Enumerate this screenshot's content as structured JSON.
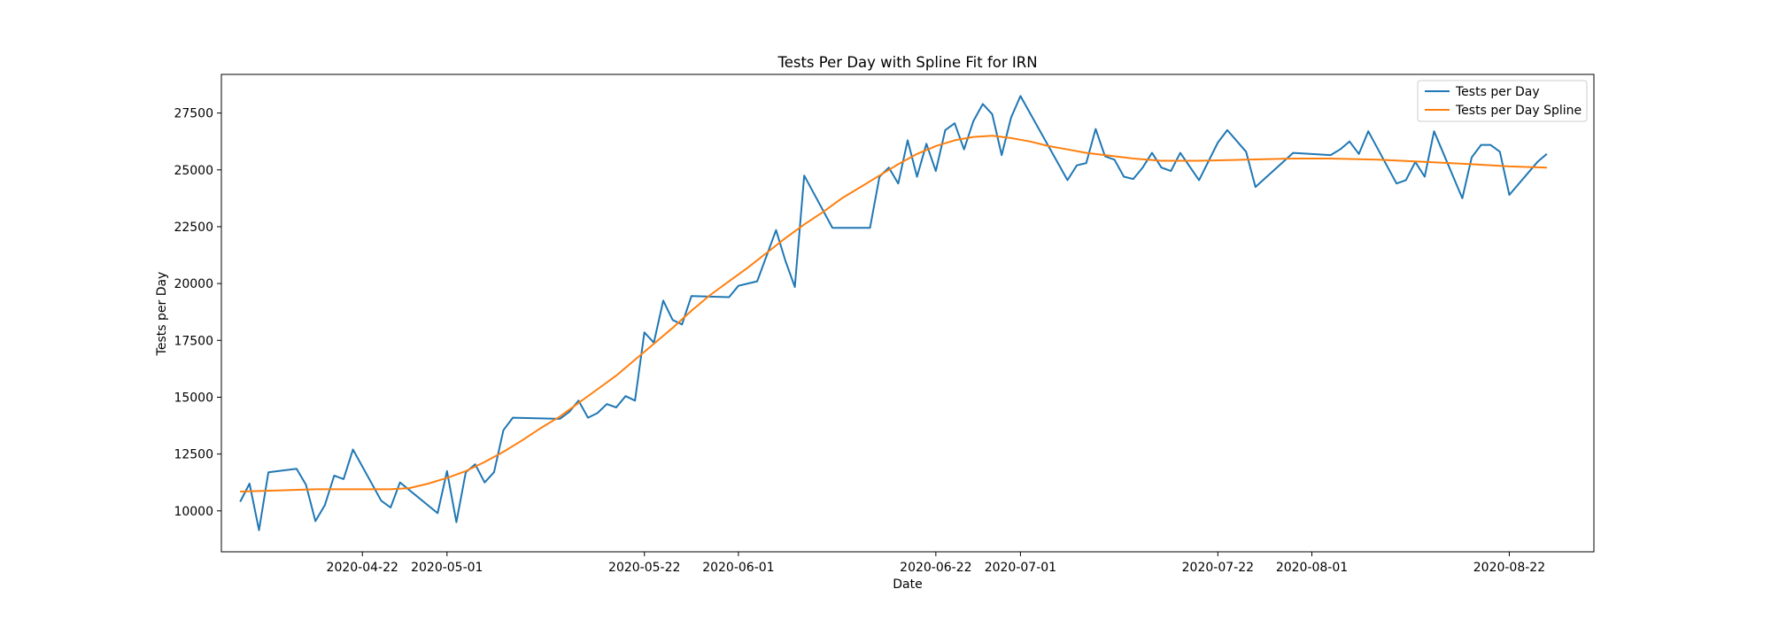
{
  "chart_data": {
    "type": "line",
    "title": "Tests Per Day with Spline Fit for IRN",
    "xlabel": "Date",
    "ylabel": "Tests per Day",
    "xlim": [
      "2020-04-07",
      "2020-08-31"
    ],
    "ylim": [
      8200,
      29200
    ],
    "x_ticks": [
      "2020-04-22",
      "2020-05-01",
      "2020-05-22",
      "2020-06-01",
      "2020-06-22",
      "2020-07-01",
      "2020-07-22",
      "2020-08-01",
      "2020-08-22"
    ],
    "y_ticks": [
      10000,
      12500,
      15000,
      17500,
      20000,
      22500,
      25000,
      27500
    ],
    "grid": false,
    "legend_position": "top-right",
    "series": [
      {
        "name": "Tests per Day",
        "color": "#1f77b4",
        "points": [
          [
            "2020-04-09",
            10400
          ],
          [
            "2020-04-10",
            11200
          ],
          [
            "2020-04-11",
            9150
          ],
          [
            "2020-04-12",
            11700
          ],
          [
            "2020-04-15",
            11850
          ],
          [
            "2020-04-16",
            11150
          ],
          [
            "2020-04-17",
            9550
          ],
          [
            "2020-04-18",
            10250
          ],
          [
            "2020-04-19",
            11550
          ],
          [
            "2020-04-20",
            11400
          ],
          [
            "2020-04-21",
            12700
          ],
          [
            "2020-04-24",
            10450
          ],
          [
            "2020-04-25",
            10150
          ],
          [
            "2020-04-26",
            11250
          ],
          [
            "2020-04-30",
            9900
          ],
          [
            "2020-05-01",
            11750
          ],
          [
            "2020-05-02",
            9500
          ],
          [
            "2020-05-03",
            11700
          ],
          [
            "2020-05-04",
            12050
          ],
          [
            "2020-05-05",
            11250
          ],
          [
            "2020-05-06",
            11700
          ],
          [
            "2020-05-07",
            13550
          ],
          [
            "2020-05-08",
            14100
          ],
          [
            "2020-05-13",
            14050
          ],
          [
            "2020-05-14",
            14350
          ],
          [
            "2020-05-15",
            14850
          ],
          [
            "2020-05-16",
            14100
          ],
          [
            "2020-05-17",
            14300
          ],
          [
            "2020-05-18",
            14700
          ],
          [
            "2020-05-19",
            14550
          ],
          [
            "2020-05-20",
            15050
          ],
          [
            "2020-05-21",
            14850
          ],
          [
            "2020-05-22",
            17850
          ],
          [
            "2020-05-23",
            17400
          ],
          [
            "2020-05-24",
            19250
          ],
          [
            "2020-05-25",
            18400
          ],
          [
            "2020-05-26",
            18200
          ],
          [
            "2020-05-27",
            19450
          ],
          [
            "2020-05-31",
            19400
          ],
          [
            "2020-06-01",
            19900
          ],
          [
            "2020-06-02",
            20000
          ],
          [
            "2020-06-03",
            20100
          ],
          [
            "2020-06-05",
            22350
          ],
          [
            "2020-06-06",
            21000
          ],
          [
            "2020-06-07",
            19850
          ],
          [
            "2020-06-08",
            24750
          ],
          [
            "2020-06-11",
            22450
          ],
          [
            "2020-06-15",
            22450
          ],
          [
            "2020-06-16",
            24700
          ],
          [
            "2020-06-17",
            25100
          ],
          [
            "2020-06-18",
            24400
          ],
          [
            "2020-06-19",
            26300
          ],
          [
            "2020-06-20",
            24700
          ],
          [
            "2020-06-21",
            26150
          ],
          [
            "2020-06-22",
            24950
          ],
          [
            "2020-06-23",
            26750
          ],
          [
            "2020-06-24",
            27050
          ],
          [
            "2020-06-25",
            25900
          ],
          [
            "2020-06-26",
            27150
          ],
          [
            "2020-06-27",
            27900
          ],
          [
            "2020-06-28",
            27450
          ],
          [
            "2020-06-29",
            25650
          ],
          [
            "2020-06-30",
            27300
          ],
          [
            "2020-07-01",
            28250
          ],
          [
            "2020-07-06",
            24550
          ],
          [
            "2020-07-07",
            25200
          ],
          [
            "2020-07-08",
            25300
          ],
          [
            "2020-07-09",
            26800
          ],
          [
            "2020-07-10",
            25600
          ],
          [
            "2020-07-11",
            25450
          ],
          [
            "2020-07-12",
            24700
          ],
          [
            "2020-07-13",
            24600
          ],
          [
            "2020-07-14",
            25100
          ],
          [
            "2020-07-15",
            25750
          ],
          [
            "2020-07-16",
            25100
          ],
          [
            "2020-07-17",
            24950
          ],
          [
            "2020-07-18",
            25750
          ],
          [
            "2020-07-20",
            24550
          ],
          [
            "2020-07-22",
            26200
          ],
          [
            "2020-07-23",
            26750
          ],
          [
            "2020-07-25",
            25800
          ],
          [
            "2020-07-26",
            24250
          ],
          [
            "2020-07-30",
            25750
          ],
          [
            "2020-08-03",
            25650
          ],
          [
            "2020-08-04",
            25900
          ],
          [
            "2020-08-05",
            26250
          ],
          [
            "2020-08-06",
            25700
          ],
          [
            "2020-08-07",
            26700
          ],
          [
            "2020-08-10",
            24400
          ],
          [
            "2020-08-11",
            24550
          ],
          [
            "2020-08-12",
            25350
          ],
          [
            "2020-08-13",
            24700
          ],
          [
            "2020-08-14",
            26700
          ],
          [
            "2020-08-17",
            23750
          ],
          [
            "2020-08-18",
            25550
          ],
          [
            "2020-08-19",
            26100
          ],
          [
            "2020-08-20",
            26100
          ],
          [
            "2020-08-21",
            25800
          ],
          [
            "2020-08-22",
            23900
          ],
          [
            "2020-08-25",
            25350
          ],
          [
            "2020-08-26",
            25700
          ]
        ]
      },
      {
        "name": "Tests per Day Spline",
        "color": "#ff7f0e",
        "points": [
          [
            "2020-04-09",
            10850
          ],
          [
            "2020-04-13",
            10900
          ],
          [
            "2020-04-17",
            10950
          ],
          [
            "2020-04-21",
            10950
          ],
          [
            "2020-04-25",
            10950
          ],
          [
            "2020-04-27",
            11000
          ],
          [
            "2020-04-29",
            11200
          ],
          [
            "2020-05-01",
            11450
          ],
          [
            "2020-05-03",
            11750
          ],
          [
            "2020-05-05",
            12150
          ],
          [
            "2020-05-07",
            12600
          ],
          [
            "2020-05-09",
            13100
          ],
          [
            "2020-05-11",
            13650
          ],
          [
            "2020-05-13",
            14150
          ],
          [
            "2020-05-15",
            14750
          ],
          [
            "2020-05-17",
            15350
          ],
          [
            "2020-05-19",
            15950
          ],
          [
            "2020-05-21",
            16650
          ],
          [
            "2020-05-23",
            17350
          ],
          [
            "2020-05-25",
            18050
          ],
          [
            "2020-05-27",
            18800
          ],
          [
            "2020-05-29",
            19500
          ],
          [
            "2020-05-31",
            20100
          ],
          [
            "2020-06-02",
            20700
          ],
          [
            "2020-06-04",
            21350
          ],
          [
            "2020-06-06",
            22000
          ],
          [
            "2020-06-08",
            22600
          ],
          [
            "2020-06-10",
            23150
          ],
          [
            "2020-06-12",
            23750
          ],
          [
            "2020-06-14",
            24250
          ],
          [
            "2020-06-16",
            24750
          ],
          [
            "2020-06-18",
            25250
          ],
          [
            "2020-06-20",
            25700
          ],
          [
            "2020-06-22",
            26050
          ],
          [
            "2020-06-24",
            26300
          ],
          [
            "2020-06-26",
            26450
          ],
          [
            "2020-06-28",
            26500
          ],
          [
            "2020-06-30",
            26400
          ],
          [
            "2020-07-02",
            26250
          ],
          [
            "2020-07-04",
            26050
          ],
          [
            "2020-07-06",
            25900
          ],
          [
            "2020-07-08",
            25750
          ],
          [
            "2020-07-10",
            25650
          ],
          [
            "2020-07-13",
            25500
          ],
          [
            "2020-07-16",
            25400
          ],
          [
            "2020-07-20",
            25400
          ],
          [
            "2020-07-25",
            25450
          ],
          [
            "2020-07-30",
            25500
          ],
          [
            "2020-08-03",
            25500
          ],
          [
            "2020-08-08",
            25450
          ],
          [
            "2020-08-13",
            25350
          ],
          [
            "2020-08-18",
            25250
          ],
          [
            "2020-08-22",
            25150
          ],
          [
            "2020-08-26",
            25100
          ]
        ]
      }
    ]
  }
}
